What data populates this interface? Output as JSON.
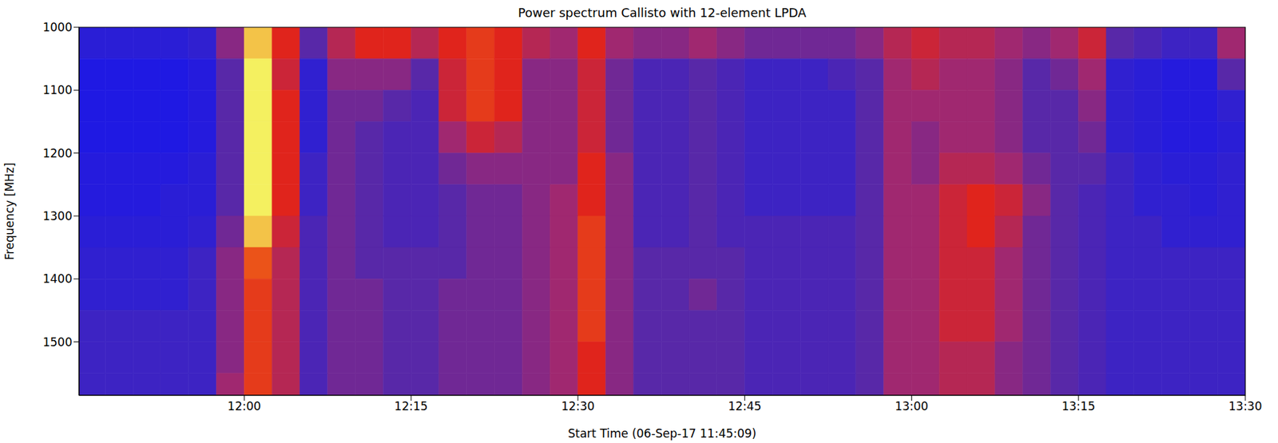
{
  "chart_data": {
    "type": "heatmap",
    "title": "Power spectrum Callisto with 12-element LPDA",
    "x_label": "Start Time (06-Sep-17 11:45:09)",
    "y_label": "Frequency [MHz]",
    "xlim": [
      705.15,
      810
    ],
    "xticks": [
      {
        "value": 720,
        "label": "12:00"
      },
      {
        "value": 735,
        "label": "12:15"
      },
      {
        "value": 750,
        "label": "12:30"
      },
      {
        "value": 765,
        "label": "12:45"
      },
      {
        "value": 780,
        "label": "13:00"
      },
      {
        "value": 795,
        "label": "13:15"
      },
      {
        "value": 810,
        "label": "13:30"
      }
    ],
    "ylim": [
      1000,
      1585
    ],
    "yticks": [
      1000,
      1100,
      1200,
      1300,
      1400,
      1500
    ],
    "zlim": [
      0,
      10
    ],
    "time_edges": [
      705,
      707.5,
      710,
      712.5,
      715,
      717.5,
      720,
      722.5,
      725,
      727.5,
      730,
      732.5,
      735,
      737.5,
      740,
      742.5,
      745,
      747.5,
      750,
      752.5,
      755,
      757.5,
      760,
      762.5,
      765,
      767.5,
      770,
      772.5,
      775,
      777.5,
      780,
      782.5,
      785,
      787.5,
      790,
      792.5,
      795,
      797.5,
      800,
      802.5,
      805,
      807.5,
      810
    ],
    "freq_edges": [
      1000,
      1050,
      1100,
      1150,
      1200,
      1250,
      1300,
      1350,
      1400,
      1450,
      1500,
      1550,
      1600
    ],
    "cells": [
      [
        2,
        1,
        1,
        1,
        1.5,
        1.5,
        2,
        2.5,
        2.5,
        3,
        3,
        3
      ],
      [
        2,
        1,
        1,
        1,
        1.5,
        1.5,
        2,
        2.5,
        2.5,
        3,
        3,
        3
      ],
      [
        2,
        1,
        1,
        1,
        1.5,
        1.5,
        2,
        2.5,
        2.5,
        3,
        3,
        3
      ],
      [
        2,
        1,
        1,
        1,
        1.5,
        2,
        2,
        2.5,
        2.5,
        3,
        3,
        3
      ],
      [
        2.5,
        1.5,
        1.5,
        1.5,
        2,
        2,
        2.5,
        3,
        3,
        3,
        3,
        3
      ],
      [
        5,
        4,
        4,
        4,
        4,
        4,
        4.5,
        5,
        5,
        5,
        5,
        5.5
      ],
      [
        9.5,
        10,
        10,
        10,
        10,
        10,
        9.5,
        8,
        7.5,
        7.5,
        7.5,
        7.5
      ],
      [
        7,
        6.5,
        7,
        7,
        7,
        7,
        6.5,
        6,
        6,
        6,
        6,
        6
      ],
      [
        4,
        2.5,
        2.5,
        2.5,
        3,
        3,
        3.5,
        3.5,
        3.5,
        3.5,
        3.5,
        3.5
      ],
      [
        6,
        5,
        4.5,
        4.5,
        4.5,
        4.5,
        4.5,
        4.5,
        4.5,
        4.5,
        4.5,
        4.5
      ],
      [
        7,
        5,
        4.5,
        4,
        4,
        4,
        4,
        4,
        4.5,
        4.5,
        4.5,
        4.5
      ],
      [
        7,
        5,
        4,
        3.5,
        3.5,
        3.5,
        3.5,
        4,
        4,
        4,
        4,
        4
      ],
      [
        6,
        4,
        3.5,
        3.5,
        3.5,
        3.5,
        3.5,
        4,
        4,
        4,
        4,
        4
      ],
      [
        7,
        6.5,
        6.5,
        5.5,
        4.5,
        4,
        4,
        4,
        4.5,
        4.5,
        4.5,
        4.5
      ],
      [
        7.5,
        7.5,
        7.5,
        6.5,
        5,
        4.5,
        4.5,
        4.5,
        4.5,
        4.5,
        4.5,
        4.5
      ],
      [
        7,
        7,
        7,
        6,
        5,
        4.5,
        4.5,
        4.5,
        4.5,
        4.5,
        4.5,
        4.5
      ],
      [
        6,
        5,
        5,
        5,
        5,
        5,
        5,
        5,
        5,
        5,
        5,
        5
      ],
      [
        5.5,
        5,
        5,
        5,
        5,
        5.5,
        5.5,
        5.5,
        5.5,
        5.5,
        5.5,
        5.5
      ],
      [
        7,
        6.5,
        6.5,
        6.5,
        7,
        7,
        7.5,
        7.5,
        7.5,
        7.5,
        7,
        7
      ],
      [
        5.5,
        4.5,
        4.5,
        4.5,
        5,
        5,
        5,
        5,
        5,
        5,
        5,
        5
      ],
      [
        5,
        3.5,
        3.5,
        3.5,
        3.5,
        3.5,
        3.5,
        4,
        4,
        4,
        4,
        4
      ],
      [
        5,
        3.5,
        3.5,
        3.5,
        3.5,
        3.5,
        3.5,
        4,
        4,
        4,
        4,
        4
      ],
      [
        5.5,
        4,
        4,
        4,
        4,
        4,
        4,
        4,
        4.5,
        4,
        4,
        4
      ],
      [
        5,
        3.5,
        3.5,
        3.5,
        3.5,
        3.5,
        3.5,
        4,
        4,
        4,
        4,
        4
      ],
      [
        4.5,
        3,
        3,
        3,
        3,
        3,
        3.5,
        3.5,
        3.5,
        3.5,
        3.5,
        3.5
      ],
      [
        4.5,
        3,
        3,
        3,
        3,
        3,
        3.5,
        3.5,
        3.5,
        3.5,
        3.5,
        3.5
      ],
      [
        4.5,
        3,
        3,
        3,
        3,
        3,
        3.5,
        3.5,
        3.5,
        3.5,
        3.5,
        3.5
      ],
      [
        4.5,
        3.5,
        3,
        3,
        3,
        3,
        3.5,
        3.5,
        3.5,
        3.5,
        3.5,
        3.5
      ],
      [
        5,
        4,
        4,
        4,
        4,
        4,
        4,
        4,
        4,
        4,
        4,
        4
      ],
      [
        6,
        5.5,
        5.5,
        5.5,
        5.5,
        5.5,
        5.5,
        5.5,
        5.5,
        5.5,
        5.5,
        5.5
      ],
      [
        6.5,
        6,
        5.5,
        5,
        5,
        5.5,
        5.5,
        5.5,
        5.5,
        5.5,
        5.5,
        5.5
      ],
      [
        6,
        5.5,
        5.5,
        5.5,
        6,
        6.5,
        6.5,
        6.5,
        6.5,
        6.5,
        6,
        6
      ],
      [
        6,
        5.5,
        5.5,
        5.5,
        6,
        7,
        7,
        6.5,
        6.5,
        6.5,
        6,
        6
      ],
      [
        5.5,
        5,
        5,
        5,
        5.5,
        6.5,
        6,
        5.5,
        5.5,
        5.5,
        5,
        5
      ],
      [
        5,
        4,
        4,
        4,
        4.5,
        5,
        4.5,
        4.5,
        4.5,
        4.5,
        4.5,
        4.5
      ],
      [
        5.5,
        4.5,
        4,
        4,
        4,
        4,
        4,
        4,
        4,
        4,
        4,
        4
      ],
      [
        6.5,
        5.5,
        5,
        4.5,
        4,
        3.5,
        3.5,
        3.5,
        3.5,
        3.5,
        3.5,
        3.5
      ],
      [
        4,
        2.5,
        2.5,
        2.5,
        3,
        3,
        3,
        3,
        3,
        3,
        3,
        3
      ],
      [
        3.5,
        2,
        2,
        2,
        2.5,
        2.5,
        3,
        3,
        3,
        3,
        3,
        3
      ],
      [
        3,
        1.5,
        1.5,
        1.5,
        2,
        2.5,
        2.5,
        3,
        3,
        3,
        3,
        3
      ],
      [
        3,
        1.5,
        1.5,
        1.5,
        2,
        2,
        2.5,
        3,
        3,
        3,
        3,
        3
      ],
      [
        5.5,
        4,
        2.5,
        2,
        2.5,
        2.5,
        2.5,
        3,
        3,
        3,
        3,
        3
      ]
    ]
  }
}
